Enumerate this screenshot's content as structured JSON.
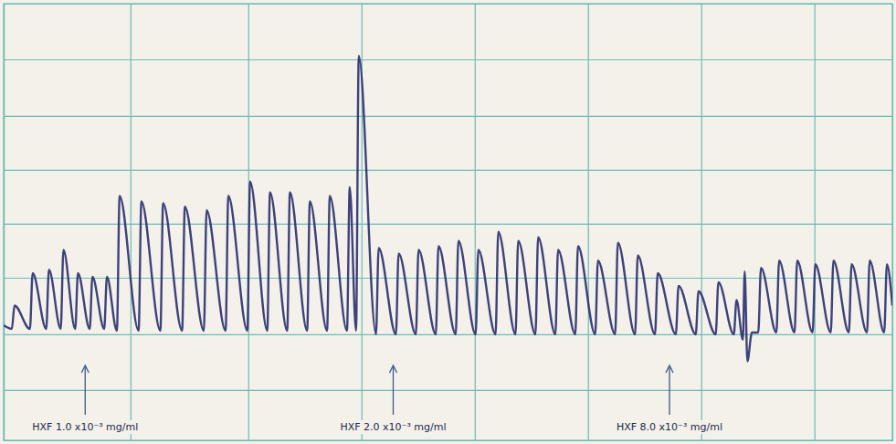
{
  "chart_data": {
    "type": "line",
    "color": "#2b2d6e",
    "grid": true,
    "tick_labels": false,
    "xlim": [
      0,
      981
    ],
    "ylim": [
      0,
      486
    ],
    "xticks": [
      140,
      270,
      395,
      520,
      645,
      770,
      895
    ],
    "yticks": [
      56,
      118,
      181,
      241,
      301,
      361,
      424
    ],
    "x": [
      0,
      9,
      12,
      29,
      32,
      47,
      50,
      63,
      66,
      79,
      82,
      95,
      98,
      111,
      114,
      125,
      128,
      149,
      152,
      173,
      176,
      197,
      200,
      221,
      224,
      245,
      248,
      269,
      272,
      291,
      294,
      313,
      316,
      335,
      338,
      357,
      360,
      379,
      382,
      389,
      392,
      411,
      414,
      433,
      436,
      455,
      458,
      477,
      480,
      499,
      502,
      521,
      524,
      543,
      546,
      565,
      568,
      587,
      590,
      609,
      612,
      631,
      634,
      653,
      656,
      675,
      678,
      697,
      700,
      719,
      722,
      742,
      745,
      764,
      767,
      786,
      789,
      806,
      809,
      816,
      818,
      821,
      826,
      833,
      836,
      853,
      856,
      873,
      876,
      893,
      896,
      913,
      916,
      933,
      936,
      953,
      956,
      972,
      975,
      981
    ],
    "values": [
      128,
      124,
      150,
      124,
      186,
      124,
      190,
      124,
      212,
      124,
      186,
      124,
      182,
      124,
      182,
      122,
      272,
      122,
      266,
      122,
      264,
      122,
      260,
      122,
      256,
      122,
      272,
      122,
      288,
      122,
      276,
      122,
      276,
      122,
      266,
      122,
      272,
      122,
      282,
      122,
      428,
      118,
      214,
      118,
      208,
      118,
      212,
      118,
      216,
      118,
      222,
      118,
      212,
      118,
      232,
      118,
      222,
      118,
      226,
      118,
      212,
      118,
      216,
      118,
      200,
      118,
      220,
      118,
      206,
      118,
      186,
      118,
      172,
      118,
      166,
      118,
      176,
      118,
      156,
      112,
      188,
      88,
      120,
      120,
      192,
      120,
      200,
      120,
      200,
      120,
      196,
      120,
      200,
      120,
      196,
      120,
      200,
      120,
      196,
      150
    ],
    "annotations": [
      {
        "text": "HXF 1.0 x10⁻³ mg/ml",
        "x": 90
      },
      {
        "text": "HXF 2.0 x10⁻³ mg/ml",
        "x": 430
      },
      {
        "text": "HXF 8.0 x10⁻³ mg/ml",
        "x": 735
      }
    ]
  }
}
